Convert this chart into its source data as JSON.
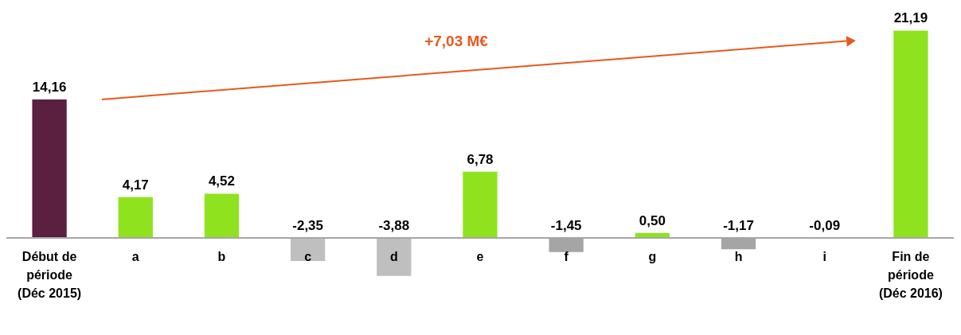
{
  "chart_data": {
    "type": "bar",
    "categories": [
      "Début de\npériode\n(Déc 2015)",
      "a",
      "b",
      "c",
      "d",
      "e",
      "f",
      "g",
      "h",
      "i",
      "Fin de\npériode\n(Déc 2016)"
    ],
    "values": [
      14.16,
      4.17,
      4.52,
      -2.35,
      -3.88,
      6.78,
      -1.45,
      0.5,
      -1.17,
      -0.09,
      21.19
    ],
    "colors": [
      "#5b1f3f",
      "#8fe31e",
      "#8fe31e",
      "#bfbfbf",
      "#bfbfbf",
      "#8fe31e",
      "#a5a5a5",
      "#8fe31e",
      "#a5a5a5",
      "#a5a5a5",
      "#8fe31e"
    ],
    "value_labels": [
      "14,16",
      "4,17",
      "4,52",
      "-2,35",
      "-3,88",
      "6,78",
      "-1,45",
      "0,50",
      "-1,17",
      "-0,09",
      "21,19"
    ],
    "annotations": [
      "+7,03 M€"
    ]
  }
}
